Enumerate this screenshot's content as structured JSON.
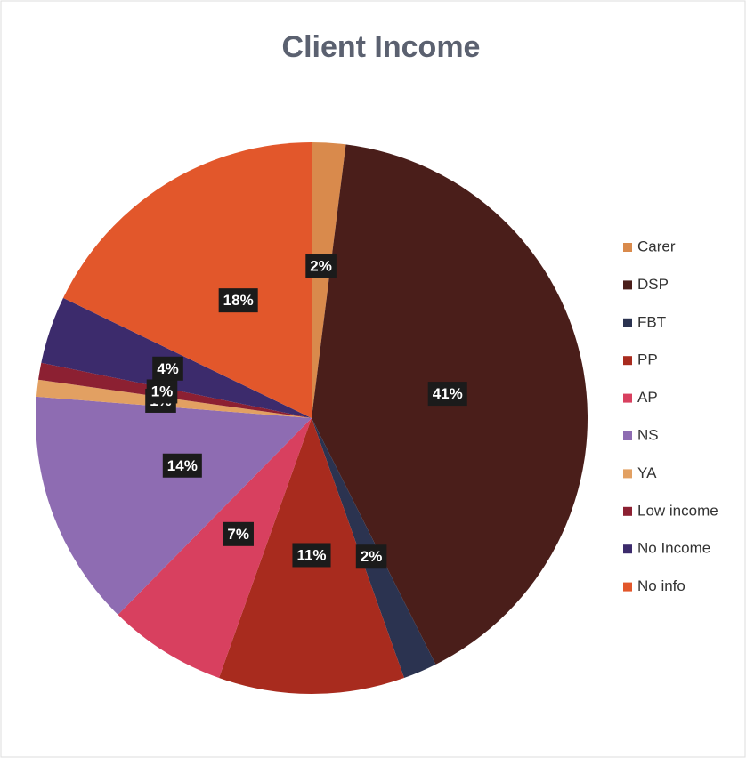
{
  "chart_data": {
    "type": "pie",
    "title": "Client Income",
    "categories": [
      "Carer",
      "DSP",
      "FBT",
      "PP",
      "AP",
      "NS",
      "YA",
      "Low income",
      "No Income",
      "No info"
    ],
    "values": [
      2,
      41,
      2,
      11,
      7,
      14,
      1,
      1,
      4,
      18
    ],
    "value_labels": [
      "2%",
      "41%",
      "2%",
      "11%",
      "7%",
      "14%",
      "1%",
      "1%",
      "4%",
      "18%"
    ],
    "colors": [
      "#d98a4c",
      "#4a1e1a",
      "#2b3350",
      "#a82b1e",
      "#d8405f",
      "#8e6cb2",
      "#e2a062",
      "#8c2032",
      "#3c2b6c",
      "#e2572b"
    ],
    "legend": "right"
  }
}
